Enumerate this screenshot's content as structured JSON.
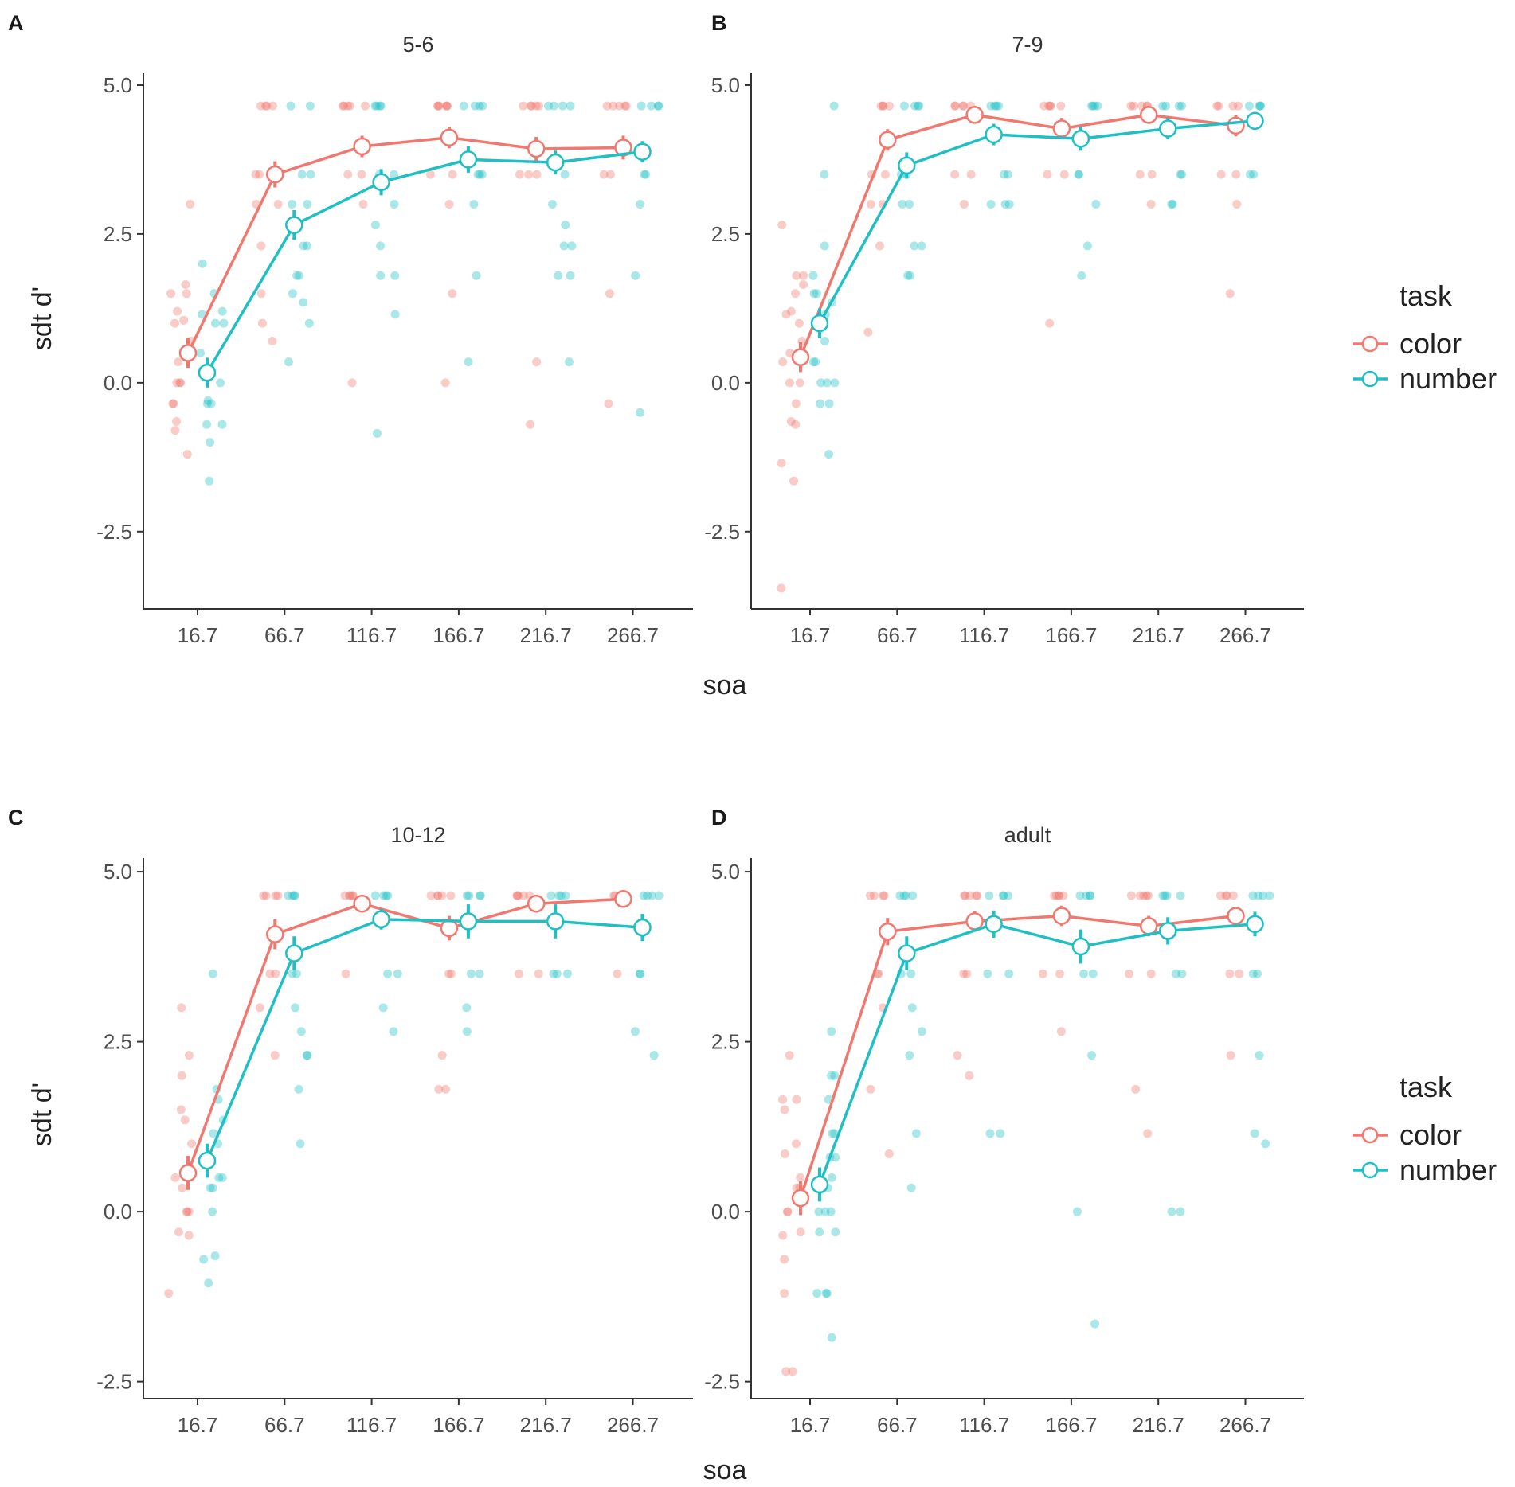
{
  "chart_data": {
    "type": "scatter",
    "xlabel": "soa",
    "ylabel": "sdt d'",
    "categories": [
      "16.7",
      "66.7",
      "116.7",
      "166.7",
      "216.7",
      "266.7"
    ],
    "y_ticks": [
      "5.0",
      "2.5",
      "0.0",
      "-2.5"
    ],
    "legend": {
      "title": "task",
      "entries": [
        {
          "label": "color",
          "color": "#F0786F"
        },
        {
          "label": "number",
          "color": "#1FBFC4"
        }
      ]
    },
    "panels": [
      {
        "letter": "A",
        "title": "5-6",
        "ylim": [
          -3.8,
          5.2
        ],
        "series": [
          {
            "name": "color",
            "means": [
              0.5,
              3.5,
              3.97,
              4.12,
              3.93,
              3.95
            ],
            "errors": [
              0.25,
              0.22,
              0.18,
              0.18,
              0.2,
              0.2
            ],
            "points": [
              [
                3.0,
                1.65,
                1.5,
                1.5,
                1.2,
                1.05,
                1.0,
                0.7,
                0.35,
                0,
                0,
                0,
                -0.35,
                -0.35,
                -0.65,
                -0.8,
                -1.2
              ],
              [
                4.65,
                4.65,
                4.65,
                4.65,
                3.5,
                3.5,
                3.0,
                3.0,
                2.3,
                1.5,
                1.0,
                0.7
              ],
              [
                4.65,
                4.65,
                4.65,
                4.65,
                4.65,
                3.5,
                3.5,
                3.0,
                0
              ],
              [
                4.65,
                4.65,
                4.65,
                4.65,
                4.65,
                4.65,
                3.5,
                3.5,
                3.0,
                1.5,
                0
              ],
              [
                4.65,
                4.65,
                4.65,
                4.65,
                4.65,
                3.5,
                3.5,
                3.5,
                0.35,
                -0.7
              ],
              [
                4.65,
                4.65,
                4.65,
                4.65,
                4.65,
                3.5,
                3.5,
                1.5,
                -0.35
              ]
            ]
          },
          {
            "name": "number",
            "means": [
              0.17,
              2.65,
              3.37,
              3.75,
              3.7,
              3.88
            ],
            "errors": [
              0.25,
              0.25,
              0.22,
              0.22,
              0.2,
              0.18
            ],
            "points": [
              [
                2.0,
                1.5,
                1.2,
                1.15,
                1.0,
                1.0,
                0.5,
                0.2,
                0,
                -0.35,
                -0.35,
                -0.3,
                -0.7,
                -0.7,
                -1.0,
                -1.65
              ],
              [
                4.65,
                4.65,
                3.5,
                3.5,
                3.0,
                3.0,
                2.3,
                2.3,
                1.8,
                1.8,
                1.5,
                1.35,
                1.0,
                0.35
              ],
              [
                4.65,
                4.65,
                4.65,
                4.65,
                3.5,
                3.5,
                3.0,
                2.65,
                2.3,
                1.8,
                1.8,
                1.15,
                -0.85
              ],
              [
                4.65,
                4.65,
                4.65,
                4.65,
                3.5,
                3.5,
                3.5,
                3.0,
                1.8,
                0.35
              ],
              [
                4.65,
                4.65,
                4.65,
                4.65,
                3.5,
                3.0,
                2.65,
                2.3,
                2.3,
                1.8,
                1.8,
                0.35
              ],
              [
                4.65,
                4.65,
                4.65,
                4.65,
                3.5,
                3.5,
                3.0,
                1.8,
                -0.5
              ]
            ]
          }
        ]
      },
      {
        "letter": "B",
        "title": "7-9",
        "ylim": [
          -3.8,
          5.2
        ],
        "series": [
          {
            "name": "color",
            "means": [
              0.43,
              4.08,
              4.5,
              4.27,
              4.5,
              4.32
            ],
            "errors": [
              0.25,
              0.18,
              0.15,
              0.18,
              0.15,
              0.18
            ],
            "points": [
              [
                2.65,
                1.8,
                1.8,
                1.65,
                1.5,
                1.2,
                1.15,
                1.0,
                0.7,
                0.5,
                0.35,
                0,
                0,
                -0.35,
                -0.65,
                -0.7,
                -1.35,
                -1.65,
                -3.45
              ],
              [
                4.65,
                4.65,
                4.65,
                4.65,
                3.5,
                3.5,
                3.0,
                3.0,
                2.3,
                0.85
              ],
              [
                4.65,
                4.65,
                4.65,
                4.65,
                4.65,
                3.5,
                3.5,
                3.0
              ],
              [
                4.65,
                4.65,
                4.65,
                4.65,
                4.65,
                3.5,
                3.5,
                1.0
              ],
              [
                4.65,
                4.65,
                4.65,
                4.65,
                4.65,
                3.5,
                3.5,
                3.0
              ],
              [
                4.65,
                4.65,
                4.65,
                4.65,
                3.5,
                3.5,
                3.0,
                1.5
              ]
            ]
          },
          {
            "name": "number",
            "means": [
              1.0,
              3.65,
              4.17,
              4.1,
              4.27,
              4.4
            ],
            "errors": [
              0.25,
              0.22,
              0.18,
              0.2,
              0.18,
              0.15
            ],
            "points": [
              [
                4.65,
                3.5,
                2.3,
                1.8,
                1.5,
                1.5,
                1.35,
                1.15,
                1.0,
                0.7,
                0.35,
                0.35,
                0,
                0,
                0,
                -0.35,
                -0.35,
                -1.2
              ],
              [
                4.65,
                4.65,
                4.65,
                4.65,
                3.5,
                3.5,
                3.0,
                3.0,
                2.3,
                2.3,
                1.8,
                1.8
              ],
              [
                4.65,
                4.65,
                4.65,
                4.65,
                3.5,
                3.5,
                3.0,
                3.0,
                3.0
              ],
              [
                4.65,
                4.65,
                4.65,
                4.65,
                3.5,
                3.5,
                3.0,
                2.3,
                1.8
              ],
              [
                4.65,
                4.65,
                4.65,
                4.65,
                3.5,
                3.5,
                3.0,
                3.0
              ],
              [
                4.65,
                4.65,
                4.65,
                4.65,
                3.5,
                3.5
              ]
            ]
          }
        ]
      },
      {
        "letter": "C",
        "title": "10-12",
        "ylim": [
          -2.75,
          5.2
        ],
        "series": [
          {
            "name": "color",
            "means": [
              0.57,
              4.08,
              4.53,
              4.17,
              4.53,
              4.6
            ],
            "errors": [
              0.25,
              0.22,
              0.13,
              0.18,
              0.13,
              0.1
            ],
            "points": [
              [
                3.0,
                2.3,
                2.0,
                1.5,
                1.35,
                1.0,
                0.5,
                0.35,
                0,
                0,
                0,
                -0.3,
                -0.35,
                -1.2
              ],
              [
                4.65,
                4.65,
                4.65,
                4.65,
                3.5,
                3.5,
                3.0,
                2.3
              ],
              [
                4.65,
                4.65,
                4.65,
                4.65,
                4.65,
                3.5
              ],
              [
                4.65,
                4.65,
                4.65,
                4.65,
                4.65,
                3.5,
                3.5,
                2.3,
                1.8,
                1.8
              ],
              [
                4.65,
                4.65,
                4.65,
                4.65,
                4.65,
                3.5,
                3.5
              ],
              [
                4.65,
                4.65,
                4.65,
                4.65,
                3.5
              ]
            ]
          },
          {
            "name": "number",
            "means": [
              0.75,
              3.8,
              4.3,
              4.27,
              4.27,
              4.18
            ],
            "errors": [
              0.25,
              0.25,
              0.15,
              0.25,
              0.25,
              0.2
            ],
            "points": [
              [
                3.5,
                1.8,
                1.65,
                1.35,
                1.15,
                1.0,
                0.5,
                0.5,
                0.35,
                0.35,
                0,
                -0.65,
                -0.7,
                -1.05
              ],
              [
                4.65,
                4.65,
                4.65,
                4.65,
                3.5,
                3.5,
                3.0,
                2.65,
                2.3,
                2.3,
                1.8,
                1.0
              ],
              [
                4.65,
                4.65,
                4.65,
                4.65,
                3.5,
                3.5,
                3.0,
                2.65
              ],
              [
                4.65,
                4.65,
                4.65,
                4.65,
                3.5,
                3.5,
                3.0,
                2.65
              ],
              [
                4.65,
                4.65,
                4.65,
                4.65,
                3.5,
                3.5,
                3.5
              ],
              [
                4.65,
                4.65,
                4.65,
                4.65,
                3.5,
                3.5,
                2.65,
                2.3
              ]
            ]
          }
        ]
      },
      {
        "letter": "D",
        "title": "adult",
        "ylim": [
          -2.75,
          5.2
        ],
        "series": [
          {
            "name": "color",
            "means": [
              0.2,
              4.12,
              4.27,
              4.35,
              4.2,
              4.35
            ],
            "errors": [
              0.25,
              0.2,
              0.15,
              0.15,
              0.15,
              0.1
            ],
            "points": [
              [
                2.3,
                1.65,
                1.65,
                1.5,
                1.0,
                0.85,
                0.5,
                0.35,
                0.35,
                0,
                0,
                -0.3,
                -0.35,
                -0.7,
                -1.2,
                -2.35,
                -2.35
              ],
              [
                4.65,
                4.65,
                4.65,
                4.65,
                3.5,
                3.5,
                3.0,
                1.8,
                0.85
              ],
              [
                4.65,
                4.65,
                4.65,
                4.65,
                4.65,
                3.5,
                3.5,
                2.3,
                2.0
              ],
              [
                4.65,
                4.65,
                4.65,
                4.65,
                4.65,
                3.5,
                3.5,
                2.65
              ],
              [
                4.65,
                4.65,
                4.65,
                4.65,
                4.65,
                3.5,
                3.5,
                1.8,
                1.15
              ],
              [
                4.65,
                4.65,
                4.65,
                4.65,
                3.5,
                3.5,
                2.3
              ]
            ]
          },
          {
            "name": "number",
            "means": [
              0.4,
              3.8,
              4.23,
              3.9,
              4.13,
              4.23
            ],
            "errors": [
              0.25,
              0.25,
              0.2,
              0.25,
              0.2,
              0.18
            ],
            "points": [
              [
                2.65,
                2.0,
                2.0,
                1.65,
                1.15,
                1.15,
                0.8,
                0.8,
                0.5,
                0.35,
                0,
                0,
                0,
                -0.3,
                -0.3,
                -1.2,
                -1.2,
                -1.2,
                -1.85
              ],
              [
                4.65,
                4.65,
                4.65,
                4.65,
                3.5,
                3.5,
                3.0,
                2.65,
                2.3,
                1.15,
                0.35
              ],
              [
                4.65,
                4.65,
                4.65,
                4.65,
                3.5,
                3.5,
                1.15,
                1.15
              ],
              [
                4.65,
                4.65,
                4.65,
                4.65,
                3.5,
                3.5,
                2.3,
                0,
                -1.65
              ],
              [
                4.65,
                4.65,
                4.65,
                4.65,
                3.5,
                3.5,
                0,
                0
              ],
              [
                4.65,
                4.65,
                4.65,
                4.65,
                3.5,
                3.5,
                2.3,
                1.15,
                1.0
              ]
            ]
          }
        ]
      }
    ]
  }
}
